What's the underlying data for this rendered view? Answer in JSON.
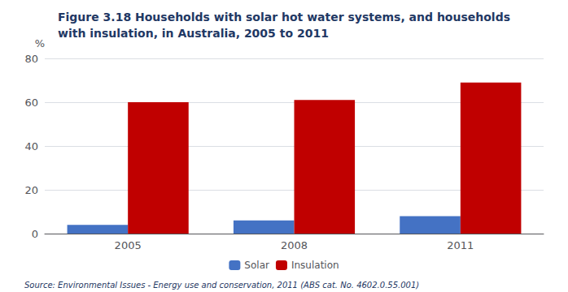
{
  "chart_data": {
    "type": "bar",
    "title": "Figure 3.18 Households with solar hot water systems, and households\nwith insulation, in Australia, 2005 to 2011",
    "categories": [
      "2005",
      "2008",
      "2011"
    ],
    "series": [
      {
        "name": "Solar",
        "color": "#4472C4",
        "values": [
          4,
          6,
          8
        ]
      },
      {
        "name": "Insulation",
        "color": "#C00000",
        "values": [
          60,
          61,
          69
        ]
      }
    ],
    "ylabel": "%",
    "ylim": [
      0,
      80
    ],
    "yticks": [
      0,
      20,
      40,
      60,
      80
    ],
    "grid": true,
    "legend": "bottom",
    "annotations": [
      "Source: Environmental Issues - Energy use and conservation, 2011 (ABS cat. No. 4602.0.55.001)"
    ]
  }
}
